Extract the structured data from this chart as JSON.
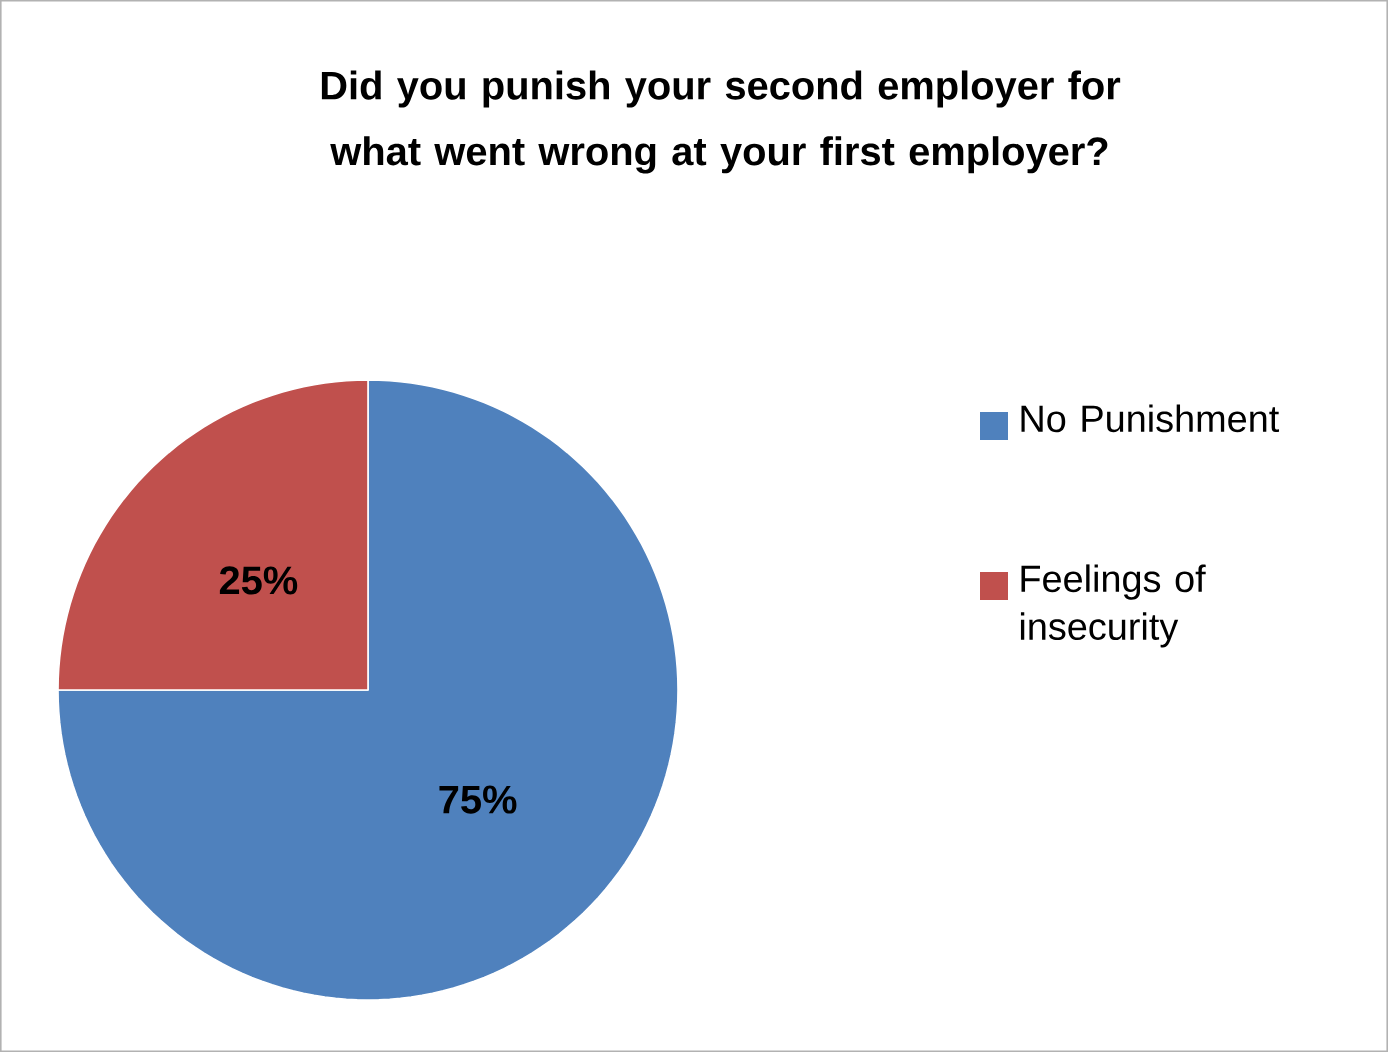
{
  "chart_data": {
    "type": "pie",
    "title": "Did you punish your second employer for what went wrong at your first employer?",
    "categories": [
      "No Punishment",
      "Feelings of insecurity"
    ],
    "values": [
      75,
      25
    ],
    "colors": [
      "#4f81bd",
      "#c0504d"
    ],
    "value_labels": [
      "75%",
      "25%"
    ],
    "legend": "right"
  }
}
